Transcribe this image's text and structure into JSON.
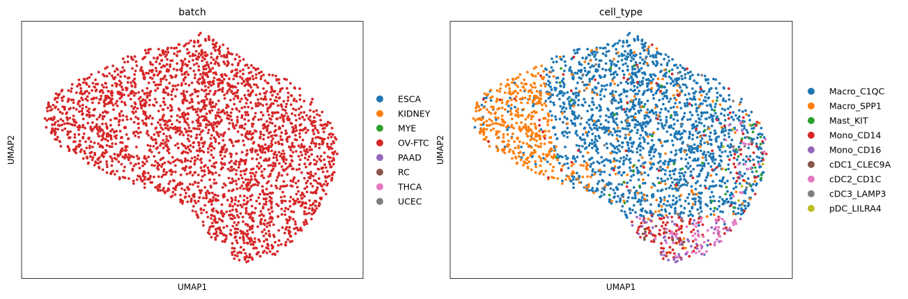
{
  "chart_data": [
    {
      "type": "scatter",
      "title": "batch",
      "xlabel": "UMAP1",
      "ylabel": "UMAP2",
      "xlim": [
        0,
        1
      ],
      "ylim": [
        0,
        1
      ],
      "grid": false,
      "legend": "right",
      "categories": [
        "ESCA",
        "KIDNEY",
        "MYE",
        "OV-FTC",
        "PAAD",
        "RC",
        "THCA",
        "UCEC"
      ],
      "colors": {
        "ESCA": "#1f77b4",
        "KIDNEY": "#ff7f0e",
        "MYE": "#2ca02c",
        "OV-FTC": "#d62728",
        "PAAD": "#9467bd",
        "RC": "#8c564b",
        "THCA": "#e377c2",
        "UCEC": "#7f7f7f"
      },
      "points": []
    },
    {
      "type": "scatter",
      "title": "cell_type",
      "xlabel": "UMAP1",
      "ylabel": "UMAP2",
      "xlim": [
        0,
        1
      ],
      "ylim": [
        0,
        1
      ],
      "grid": false,
      "legend": "right",
      "categories": [
        "Macro_C1QC",
        "Macro_SPP1",
        "Mast_KIT",
        "Mono_CD14",
        "Mono_CD16",
        "cDC1_CLEC9A",
        "cDC2_CD1C",
        "cDC3_LAMP3",
        "pDC_LILRA4"
      ],
      "colors": {
        "Macro_C1QC": "#1f77b4",
        "Macro_SPP1": "#ff7f0e",
        "Mast_KIT": "#2ca02c",
        "Mono_CD14": "#d62728",
        "Mono_CD16": "#9467bd",
        "cDC1_CLEC9A": "#8c564b",
        "cDC2_CD1C": "#e377c2",
        "cDC3_LAMP3": "#7f7f7f",
        "pDC_LILRA4": "#bcbd22"
      },
      "points": []
    }
  ]
}
